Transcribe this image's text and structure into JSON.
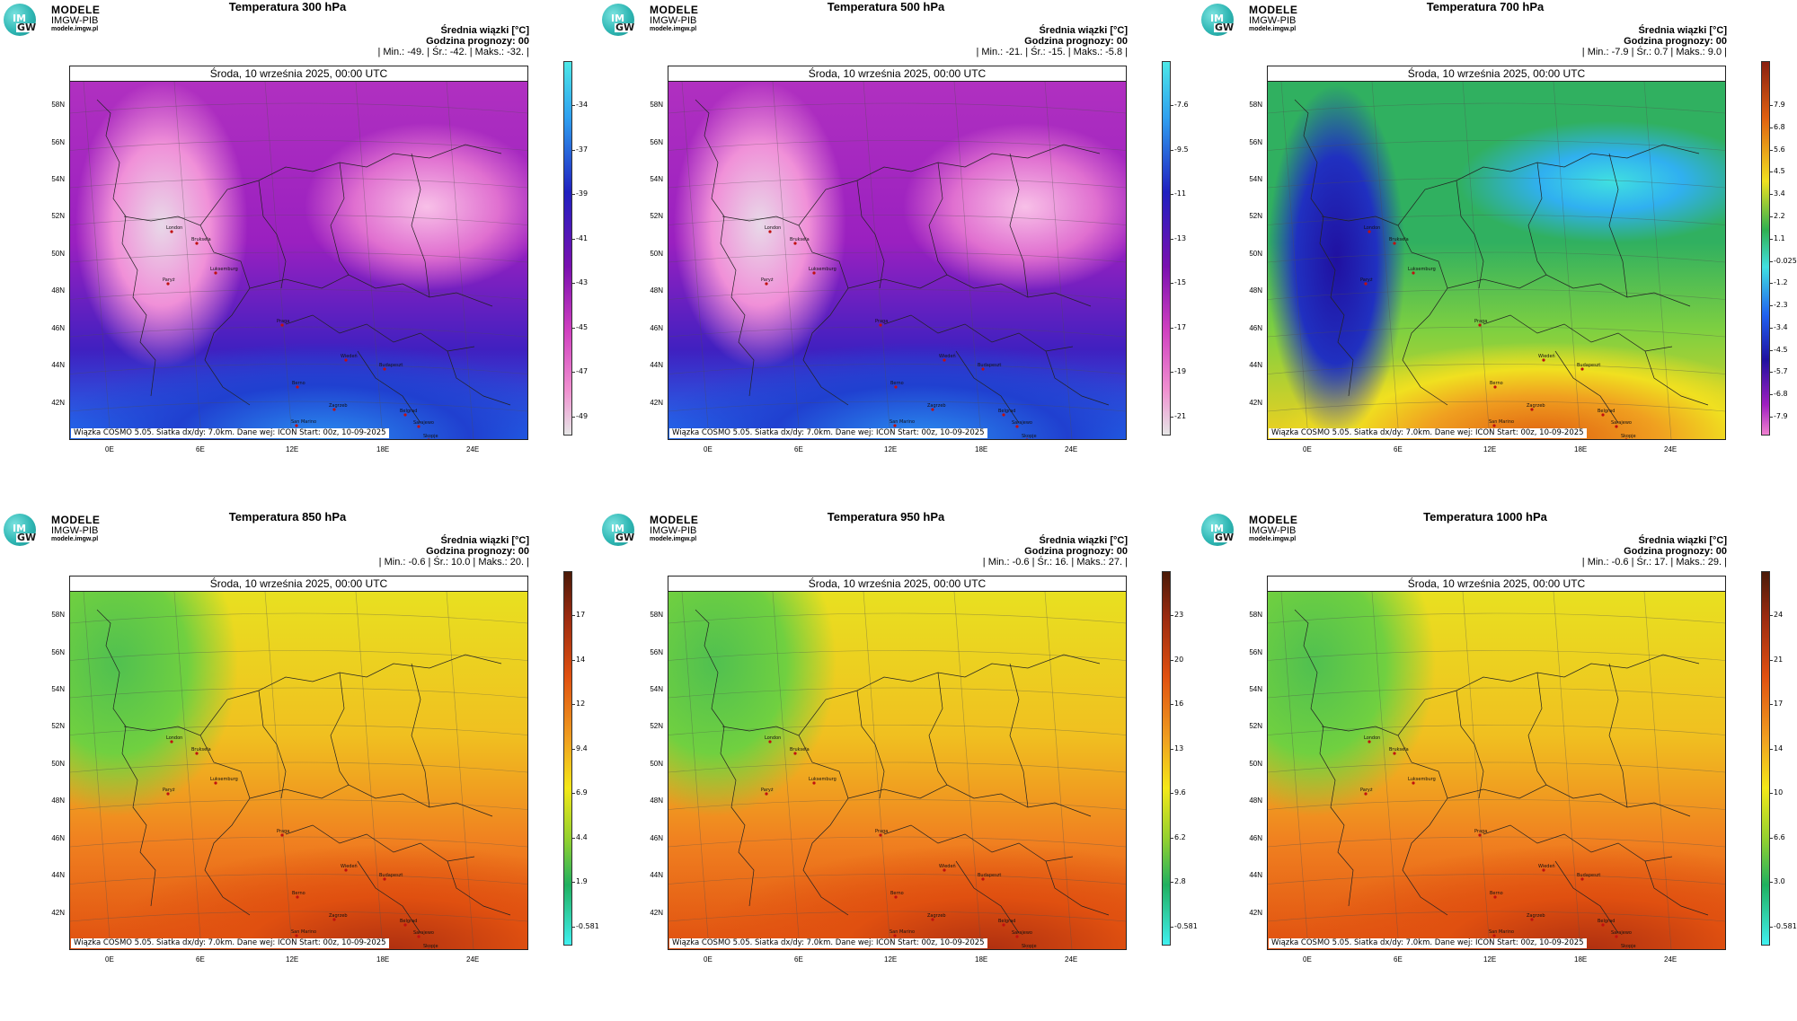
{
  "logo": {
    "line1": "MODELE",
    "line2": "IMGW-PIB",
    "line3": "modele.imgw.pl",
    "mark_top": "IM",
    "mark_bottom": "GW"
  },
  "common": {
    "date": "Środa, 10 września 2025, 00:00 UTC",
    "info_title": "Średnia wiązki [°C]",
    "forecast_hour": "Godzina prognozy: 00",
    "footer": "Wiązka COSMO 5.05. Siatka dx/dy: 7.0km. Dane wej: ICON Start: 00z, 10-09-2025",
    "lat_labels": [
      "58N",
      "56N",
      "54N",
      "52N",
      "50N",
      "48N",
      "46N",
      "44N",
      "42N"
    ],
    "lon_labels": [
      "0E",
      "6E",
      "12E",
      "18E",
      "24E"
    ],
    "cities": [
      "London",
      "Bruksela",
      "Luksemburg",
      "Paryż",
      "Praga",
      "Wiedeń",
      "Budapeszt",
      "Berno",
      "Zagrzeb",
      "Belgrad",
      "San Marino",
      "Sarajewo",
      "Monako",
      "Skopje",
      "Andora",
      "Rzym"
    ]
  },
  "panels": [
    {
      "title": "Temperatura 300 hPa",
      "stats": "| Min.:   -49. | Śr.:   -42. | Maks.:   -32. |",
      "palette": "cold",
      "colorbar_ticks": [
        "-34",
        "-37",
        "-39",
        "-41",
        "-43",
        "-45",
        "-47",
        "-49"
      ]
    },
    {
      "title": "Temperatura 500 hPa",
      "stats": "| Min.:   -21. | Śr.:   -15. | Maks.:   -5.8 |",
      "palette": "cold",
      "colorbar_ticks": [
        "-7.6",
        "-9.5",
        "-11",
        "-13",
        "-15",
        "-17",
        "-19",
        "-21"
      ]
    },
    {
      "title": "Temperatura 700 hPa",
      "stats": "| Min.:   -7.9 | Śr.:   0.7 | Maks.:   9.0 |",
      "palette": "mixed",
      "colorbar_ticks": [
        "7.9",
        "6.8",
        "5.6",
        "4.5",
        "3.4",
        "2.2",
        "1.1",
        "-0.025",
        "-1.2",
        "-2.3",
        "-3.4",
        "-4.5",
        "-5.7",
        "-6.8",
        "-7.9"
      ]
    },
    {
      "title": "Temperatura 850 hPa",
      "stats": "| Min.:   -0.6 | Śr.:   10.0 | Maks.:   20. |",
      "palette": "warm",
      "colorbar_ticks": [
        "17",
        "14",
        "12",
        "9.4",
        "6.9",
        "4.4",
        "1.9",
        "-0.581"
      ]
    },
    {
      "title": "Temperatura 950 hPa",
      "stats": "| Min.:   -0.6 | Śr.:   16. | Maks.:   27. |",
      "palette": "warm",
      "colorbar_ticks": [
        "23",
        "20",
        "16",
        "13",
        "9.6",
        "6.2",
        "2.8",
        "-0.581"
      ]
    },
    {
      "title": "Temperatura 1000 hPa",
      "stats": "| Min.:   -0.6 | Śr.:   17. | Maks.:   29. |",
      "palette": "warm",
      "colorbar_ticks": [
        "24",
        "21",
        "17",
        "14",
        "10",
        "6.6",
        "3.0",
        "-0.581"
      ]
    }
  ],
  "colors": {
    "cold_top": "#40e0e0",
    "cold_mid": "#2a10b0",
    "cold_bottom": "#e8e8e8",
    "warm_top": "#6b2a10",
    "warm_mid": "#f2e21a",
    "warm_bottom": "#40f0f0"
  }
}
